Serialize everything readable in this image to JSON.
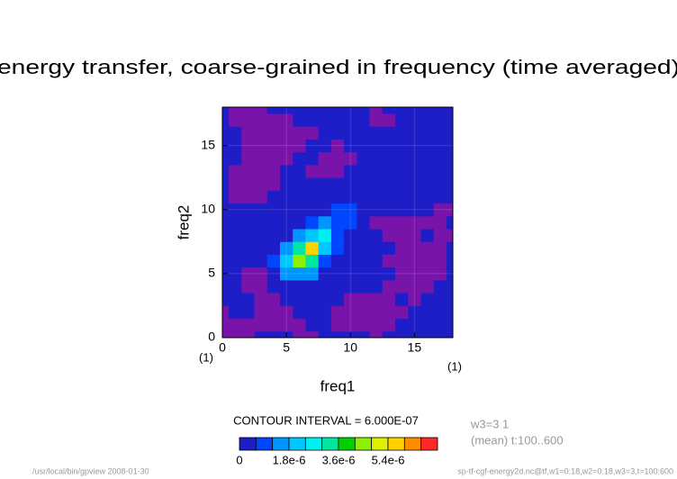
{
  "chart_data": {
    "type": "contour",
    "title": "energy transfer, coarse-grained in frequency (time averaged)",
    "x_label": "freq1",
    "y_label": "freq2",
    "x_unit": "(1)",
    "y_unit": "(1)",
    "xlim": [
      0,
      18
    ],
    "ylim": [
      0,
      18
    ],
    "xticks": [
      0,
      5,
      10,
      15
    ],
    "yticks": [
      0,
      5,
      10,
      15
    ],
    "grid": true,
    "x": [
      0,
      1,
      2,
      3,
      4,
      5,
      6,
      7,
      8,
      9,
      10,
      11,
      12,
      13,
      14,
      15,
      16,
      17,
      18
    ],
    "y": [
      0,
      1,
      2,
      3,
      4,
      5,
      6,
      7,
      8,
      9,
      10,
      11,
      12,
      13,
      14,
      15,
      16,
      17,
      18
    ],
    "z": [
      [
        -3e-07,
        -3e-07,
        -3e-07,
        3e-07,
        3e-07,
        3e-07,
        -3e-07,
        -3e-07,
        3e-07,
        3e-07,
        3e-07,
        3e-07,
        -3e-07,
        3e-07,
        3e-07,
        3e-07,
        3e-07,
        3e-07,
        3e-07
      ],
      [
        -3e-07,
        -3e-07,
        -3e-07,
        -3e-07,
        -3e-07,
        -3e-07,
        -3e-07,
        3e-07,
        3e-07,
        -3e-07,
        -3e-07,
        -3e-07,
        -3e-07,
        -3e-07,
        3e-07,
        3e-07,
        3e-07,
        3e-07,
        3e-07
      ],
      [
        -3e-07,
        3e-07,
        3e-07,
        -3e-07,
        -3e-07,
        -3e-07,
        3e-07,
        3e-07,
        3e-07,
        -3e-07,
        -3e-07,
        -3e-07,
        -3e-07,
        -3e-07,
        -3e-07,
        3e-07,
        3e-07,
        3e-07,
        3e-07
      ],
      [
        3e-07,
        3e-07,
        3e-07,
        -3e-07,
        -3e-07,
        3e-07,
        3e-07,
        3e-07,
        3e-07,
        3e-07,
        -3e-07,
        -3e-07,
        -3e-07,
        -3e-07,
        3e-07,
        -3e-07,
        3e-07,
        3e-07,
        3e-07
      ],
      [
        3e-07,
        3e-07,
        -3e-07,
        -3e-07,
        3e-07,
        3e-07,
        3e-07,
        3e-07,
        3e-07,
        3e-07,
        3e-07,
        3e-07,
        3e-07,
        -3e-07,
        -3e-07,
        -3e-07,
        -3e-07,
        3e-07,
        3e-07
      ],
      [
        3e-07,
        3e-07,
        -3e-07,
        -3e-07,
        3e-07,
        1.2e-06,
        1.5e-06,
        1.2e-06,
        3e-07,
        3e-07,
        3e-07,
        3e-07,
        3e-07,
        3e-07,
        -3e-07,
        -3e-07,
        -3e-07,
        -3e-07,
        3e-07
      ],
      [
        3e-07,
        3e-07,
        3e-07,
        3e-07,
        9e-07,
        2e-06,
        4.2e-06,
        3.2e-06,
        7e-07,
        3e-07,
        3e-07,
        3e-07,
        3e-07,
        -3e-07,
        -3e-07,
        -3e-07,
        -3e-07,
        -3e-07,
        3e-07
      ],
      [
        3e-07,
        3e-07,
        3e-07,
        3e-07,
        3e-07,
        1.5e-06,
        3.5e-06,
        5.5e-06,
        2e-06,
        7e-07,
        3e-07,
        3e-07,
        3e-07,
        3e-07,
        -3e-07,
        -3e-07,
        -3e-07,
        -3e-07,
        3e-07
      ],
      [
        3e-07,
        3e-07,
        3e-07,
        3e-07,
        3e-07,
        3e-07,
        1.4e-06,
        2.2e-06,
        2.6e-06,
        1e-06,
        3e-07,
        3e-07,
        3e-07,
        -3e-07,
        -3e-07,
        -3e-07,
        3e-07,
        -3e-07,
        -3e-07
      ],
      [
        3e-07,
        3e-07,
        3e-07,
        3e-07,
        3e-07,
        3e-07,
        3e-07,
        1e-06,
        1.2e-06,
        1e-06,
        7e-07,
        3e-07,
        -3e-07,
        -3e-07,
        -3e-07,
        -3e-07,
        -3e-07,
        -3e-07,
        3e-07
      ],
      [
        3e-07,
        3e-07,
        3e-07,
        3e-07,
        3e-07,
        3e-07,
        3e-07,
        3e-07,
        3e-07,
        8e-07,
        7e-07,
        3e-07,
        3e-07,
        3e-07,
        3e-07,
        3e-07,
        3e-07,
        -3e-07,
        -3e-07
      ],
      [
        3e-07,
        -3e-07,
        -3e-07,
        -3e-07,
        3e-07,
        3e-07,
        3e-07,
        3e-07,
        3e-07,
        3e-07,
        3e-07,
        3e-07,
        3e-07,
        3e-07,
        3e-07,
        3e-07,
        3e-07,
        3e-07,
        3e-07
      ],
      [
        3e-07,
        -3e-07,
        -3e-07,
        -3e-07,
        -3e-07,
        3e-07,
        3e-07,
        3e-07,
        3e-07,
        3e-07,
        3e-07,
        3e-07,
        3e-07,
        3e-07,
        3e-07,
        3e-07,
        3e-07,
        3e-07,
        3e-07
      ],
      [
        3e-07,
        -3e-07,
        -3e-07,
        -3e-07,
        -3e-07,
        3e-07,
        3e-07,
        -3e-07,
        -3e-07,
        -3e-07,
        3e-07,
        3e-07,
        3e-07,
        3e-07,
        3e-07,
        3e-07,
        3e-07,
        3e-07,
        3e-07
      ],
      [
        3e-07,
        3e-07,
        -3e-07,
        -3e-07,
        -3e-07,
        -3e-07,
        3e-07,
        3e-07,
        -3e-07,
        -3e-07,
        -3e-07,
        3e-07,
        3e-07,
        3e-07,
        3e-07,
        3e-07,
        3e-07,
        3e-07,
        3e-07
      ],
      [
        3e-07,
        3e-07,
        -3e-07,
        -3e-07,
        -3e-07,
        -3e-07,
        -3e-07,
        3e-07,
        3e-07,
        -3e-07,
        3e-07,
        3e-07,
        3e-07,
        3e-07,
        3e-07,
        3e-07,
        3e-07,
        3e-07,
        3e-07
      ],
      [
        3e-07,
        3e-07,
        -3e-07,
        -3e-07,
        -3e-07,
        -3e-07,
        -3e-07,
        -3e-07,
        3e-07,
        3e-07,
        3e-07,
        3e-07,
        3e-07,
        3e-07,
        3e-07,
        3e-07,
        3e-07,
        3e-07,
        3e-07
      ],
      [
        3e-07,
        -3e-07,
        -3e-07,
        -3e-07,
        -3e-07,
        -3e-07,
        3e-07,
        3e-07,
        3e-07,
        3e-07,
        3e-07,
        3e-07,
        -3e-07,
        -3e-07,
        3e-07,
        3e-07,
        3e-07,
        3e-07,
        3e-07
      ],
      [
        3e-07,
        -3e-07,
        -3e-07,
        -3e-07,
        3e-07,
        3e-07,
        3e-07,
        3e-07,
        3e-07,
        3e-07,
        3e-07,
        3e-07,
        -3e-07,
        3e-07,
        3e-07,
        3e-07,
        3e-07,
        3e-07,
        3e-07
      ]
    ],
    "levels": [
      0,
      6e-07,
      1.2e-06,
      1.8e-06,
      2.4e-06,
      3e-06,
      3.6e-06,
      4.2e-06,
      4.8e-06,
      5.4e-06,
      6e-06,
      6.6e-06,
      7.2e-06
    ],
    "colors": [
      "#1e1ec8",
      "#0046ff",
      "#0096ff",
      "#00c8ff",
      "#00f0f0",
      "#00e6a0",
      "#00d200",
      "#8cf000",
      "#dcf000",
      "#ffd200",
      "#ff8c00",
      "#ff2828"
    ],
    "under_color": "#7814aa",
    "colorbar_ticks": [
      0,
      {
        "value": 1.8e-06,
        "label": "1.8e-6"
      },
      {
        "value": 3.6e-06,
        "label": "3.6e-6"
      },
      {
        "value": 5.4e-06,
        "label": "5.4e-6"
      }
    ],
    "contour_interval": "CONTOUR INTERVAL = 6.000E-07",
    "info_lines": [
      "w3=3 1",
      "(mean) t:100..600"
    ],
    "footer_left": "/usr/local/bin/gpview  2008-01-30",
    "footer_right": "sp-tf-cgf-energy2d.nc@tf,w1=0:18,w2=0:18,w3=3,t=100:600"
  }
}
